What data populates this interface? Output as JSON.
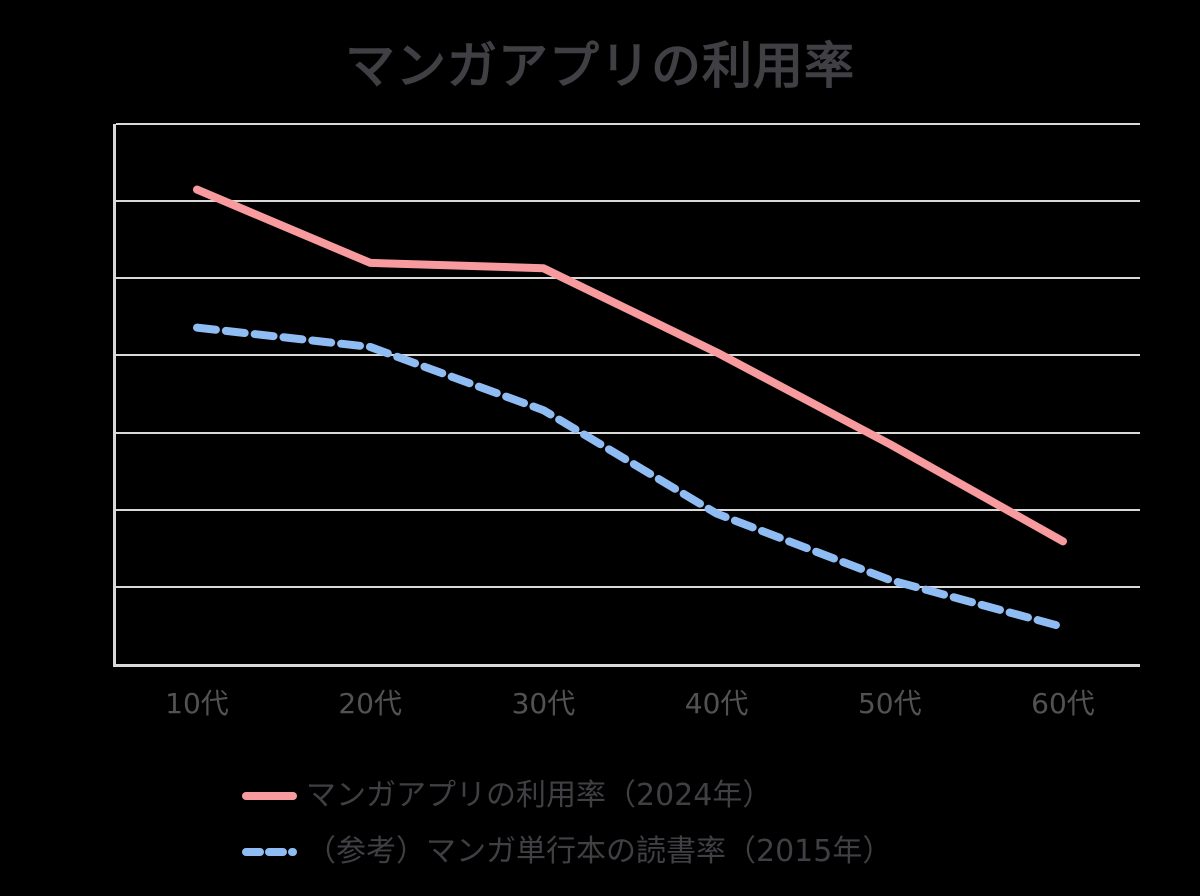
{
  "title": "マンガアプリの利用率",
  "chart_data": {
    "type": "line",
    "title": "マンガアプリの利用率",
    "categories": [
      "10代",
      "20代",
      "30代",
      "40代",
      "50代",
      "60代"
    ],
    "series": [
      {
        "name": "マンガアプリの利用率（2024年）",
        "values": [
          61.5,
          52.0,
          51.3,
          40.4,
          28.5,
          15.9
        ],
        "color": "#F89B9F",
        "style": "solid"
      },
      {
        "name": "（参考）マンガ単行本の読書率（2015年）",
        "values": [
          43.6,
          41.1,
          32.9,
          19.5,
          10.9,
          4.8
        ],
        "color": "#8FBCF2",
        "style": "dashed"
      }
    ],
    "xlabel": "",
    "ylabel": "",
    "ylim": [
      0,
      70
    ],
    "gridline_step": 10,
    "grid": "horizontal",
    "y_axis_labels_visible": false,
    "legend_position": "bottom-left",
    "colors": {
      "background": "#000000",
      "gridline": "#D9D9D9",
      "axis": "#D9D9D9",
      "title_text": "#3F3F44",
      "tick_text": "#525252",
      "legend_text": "#3F3F44"
    }
  }
}
